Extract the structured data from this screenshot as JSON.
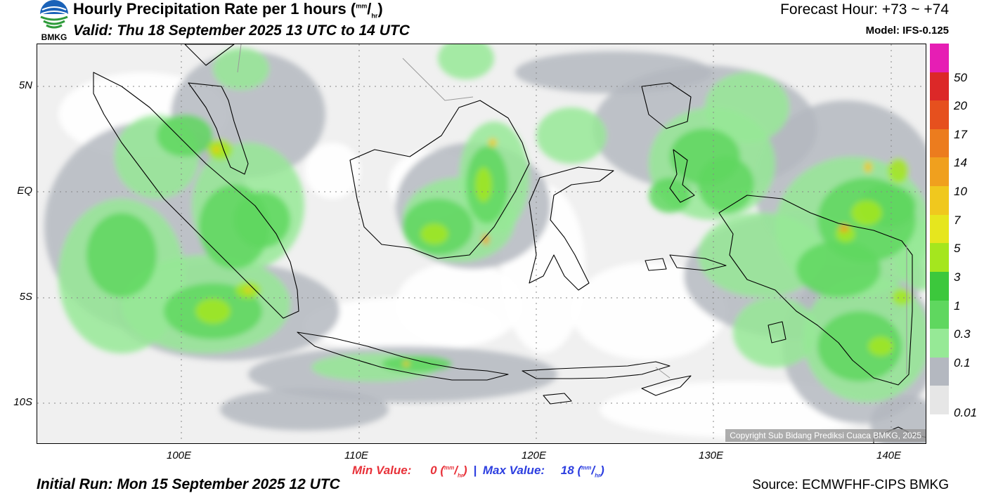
{
  "logo": {
    "text": "BMKG"
  },
  "header": {
    "title": "Hourly Precipitation Rate per 1 hours",
    "unit_num": "mm",
    "unit_den": "hr",
    "valid": "Valid: Thu 18 September 2025 13 UTC to 14 UTC",
    "forecast_hour": "Forecast Hour: +73 ~ +74",
    "model": "Model: IFS-0.125"
  },
  "map": {
    "lat_labels": [
      "5N",
      "EQ",
      "5S",
      "10S"
    ],
    "lon_labels": [
      "100E",
      "110E",
      "120E",
      "130E",
      "140E"
    ],
    "copyright": "Copyright Sub Bidang Prediksi Cuaca BMKG, 2025",
    "colors": {
      "land_outline": "#000000",
      "grid": "#888888"
    }
  },
  "legend": {
    "levels": [
      "0.01",
      "0.1",
      "0.3",
      "1",
      "3",
      "5",
      "7",
      "10",
      "14",
      "17",
      "20",
      "50"
    ],
    "colors": [
      "#e6e6e6",
      "#b4b8c0",
      "#96e996",
      "#5fd75f",
      "#3cc83c",
      "#a5e61e",
      "#e6e61e",
      "#f0c81e",
      "#f0a01e",
      "#ec7c1e",
      "#e6501e",
      "#dc2828",
      "#e61eb4"
    ]
  },
  "stats": {
    "min_label": "Min Value:",
    "min_value": "0",
    "max_label": "Max Value:",
    "max_value": "18",
    "unit_num": "mm",
    "unit_den": "hr"
  },
  "footer": {
    "initial_run": "Initial Run: Mon 15 September 2025 12 UTC",
    "source": "Source: ECMWFHF-CIPS BMKG"
  }
}
